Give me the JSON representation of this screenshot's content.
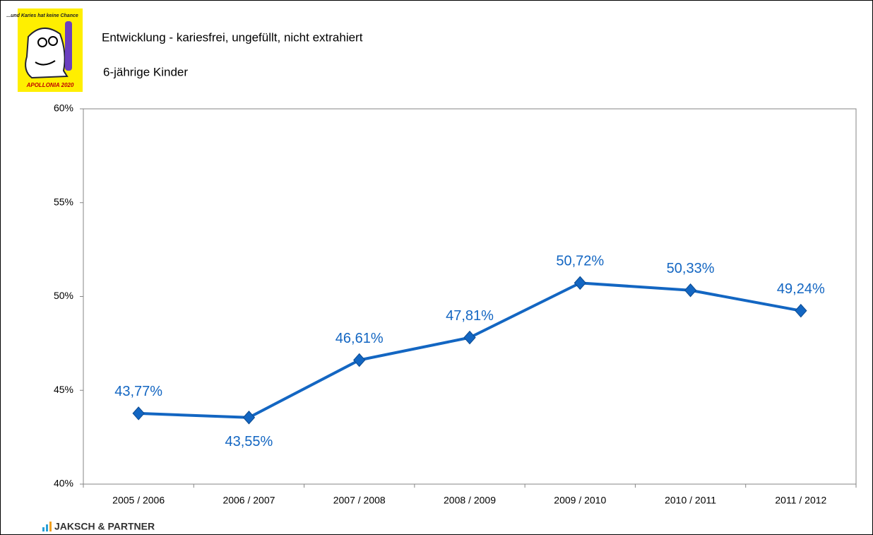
{
  "chart_data": {
    "type": "line",
    "title": "Entwicklung - kariesfrei, ungefüllt, nicht extrahiert",
    "subtitle": "6-jährige Kinder",
    "categories": [
      "2005 / 2006",
      "2006 / 2007",
      "2007 / 2008",
      "2008 / 2009",
      "2009 / 2010",
      "2010 / 2011",
      "2011 / 2012"
    ],
    "series": [
      {
        "color": "#1366c2",
        "values": [
          43.77,
          43.55,
          46.61,
          47.81,
          50.72,
          50.33,
          49.24
        ],
        "value_labels": [
          "43,77%",
          "43,55%",
          "46,61%",
          "47,81%",
          "50,72%",
          "50,33%",
          "49,24%"
        ]
      }
    ],
    "ylim": [
      40,
      60
    ],
    "yticks": [
      {
        "value": 40,
        "label": "40%"
      },
      {
        "value": 45,
        "label": "45%"
      },
      {
        "value": 50,
        "label": "50%"
      },
      {
        "value": 55,
        "label": "55%"
      },
      {
        "value": 60,
        "label": "60%"
      }
    ],
    "grid": false
  },
  "branding": {
    "logo_text": "...und Karies hat keine Chance",
    "logo_caption": "APOLLONIA 2020",
    "footer": "JAKSCH & PARTNER"
  }
}
